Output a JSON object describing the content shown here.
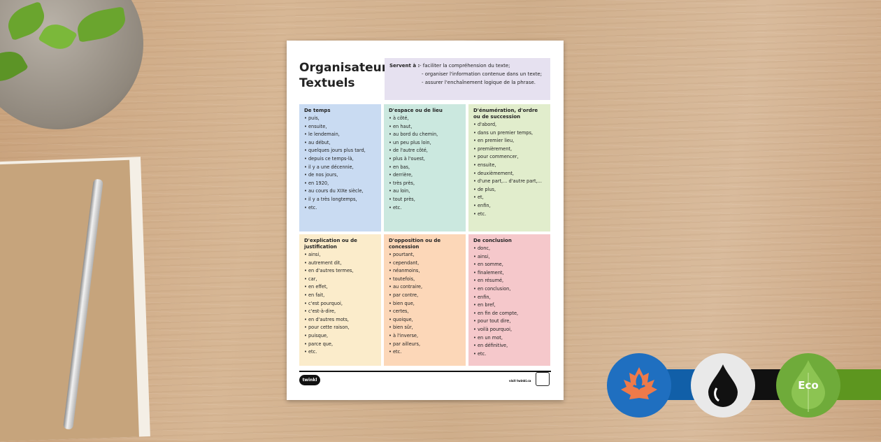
{
  "poster": {
    "title_line1": "Organisateurs",
    "title_line2": "Textuels",
    "servent_label": "Servent à :",
    "servent_items": [
      "- faciliter la compréhension du texte;",
      "- organiser l'information contenue dans un texte;",
      "- assurer l'enchaînement logique de la phrase."
    ],
    "categories": [
      {
        "heading": "De temps",
        "color": "#c9dbf2",
        "items": [
          "puis,",
          "ensuite,",
          "le lendemain,",
          "au début,",
          "quelques jours plus tard,",
          "depuis ce temps-là,",
          "il y a une décennie,",
          "de nos jours,",
          "en 1920,",
          "au cours du XIXe siècle,",
          "il y a très longtemps,",
          "etc."
        ]
      },
      {
        "heading": "D'espace ou de lieu",
        "color": "#cbe8df",
        "items": [
          "à côté,",
          "en haut,",
          "au bord du chemin,",
          "un peu plus loin,",
          "de l'autre côté,",
          "plus à l'ouest,",
          "en bas,",
          "derrière,",
          "très près,",
          "au loin,",
          "tout près,",
          "etc."
        ]
      },
      {
        "heading": "D'énumération, d'ordre ou de succession",
        "color": "#e1edcc",
        "items": [
          "d'abord,",
          "dans un premier temps,",
          "en premier lieu,",
          "premièrement,",
          "pour commencer,",
          "ensuite,",
          "deuxièmement,",
          "d'une part,... d'autre part,...",
          "de plus,",
          "et,",
          "enfin,",
          "etc."
        ]
      },
      {
        "heading": "D'explication ou de justification",
        "color": "#fbeccb",
        "items": [
          "ainsi,",
          "autrement dit,",
          "en d'autres termes,",
          "car,",
          "en effet,",
          "en fait,",
          "c'est pourquoi,",
          "c'est-à-dire,",
          "en d'autres mots,",
          "pour cette raison,",
          "puisque,",
          "parce que,",
          "etc."
        ]
      },
      {
        "heading": "D'opposition ou de concession",
        "color": "#fcd7b8",
        "items": [
          "pourtant,",
          "cependant,",
          "néanmoins,",
          "toutefois,",
          "au contraire,",
          "par contre,",
          "bien que,",
          "certes,",
          "quoique,",
          "bien sûr,",
          "à l'inverse,",
          "par ailleurs,",
          "etc."
        ]
      },
      {
        "heading": "De conclusion",
        "color": "#f5c8cb",
        "items": [
          "donc,",
          "ainsi,",
          "en somme,",
          "finalement,",
          "en résumé,",
          "en conclusion,",
          "enfin,",
          "en bref,",
          "en fin de compte,",
          "pour tout dire,",
          "voilà pourquoi,",
          "en un mot,",
          "en définitive,",
          "etc."
        ]
      }
    ],
    "logo": "twinkl",
    "visit": "visit twinkl.ca"
  },
  "badges": {
    "eco_label": "Eco",
    "quebec_color": "#1f6fc0",
    "ink_color": "#111111",
    "eco_color": "#6fab3a"
  }
}
